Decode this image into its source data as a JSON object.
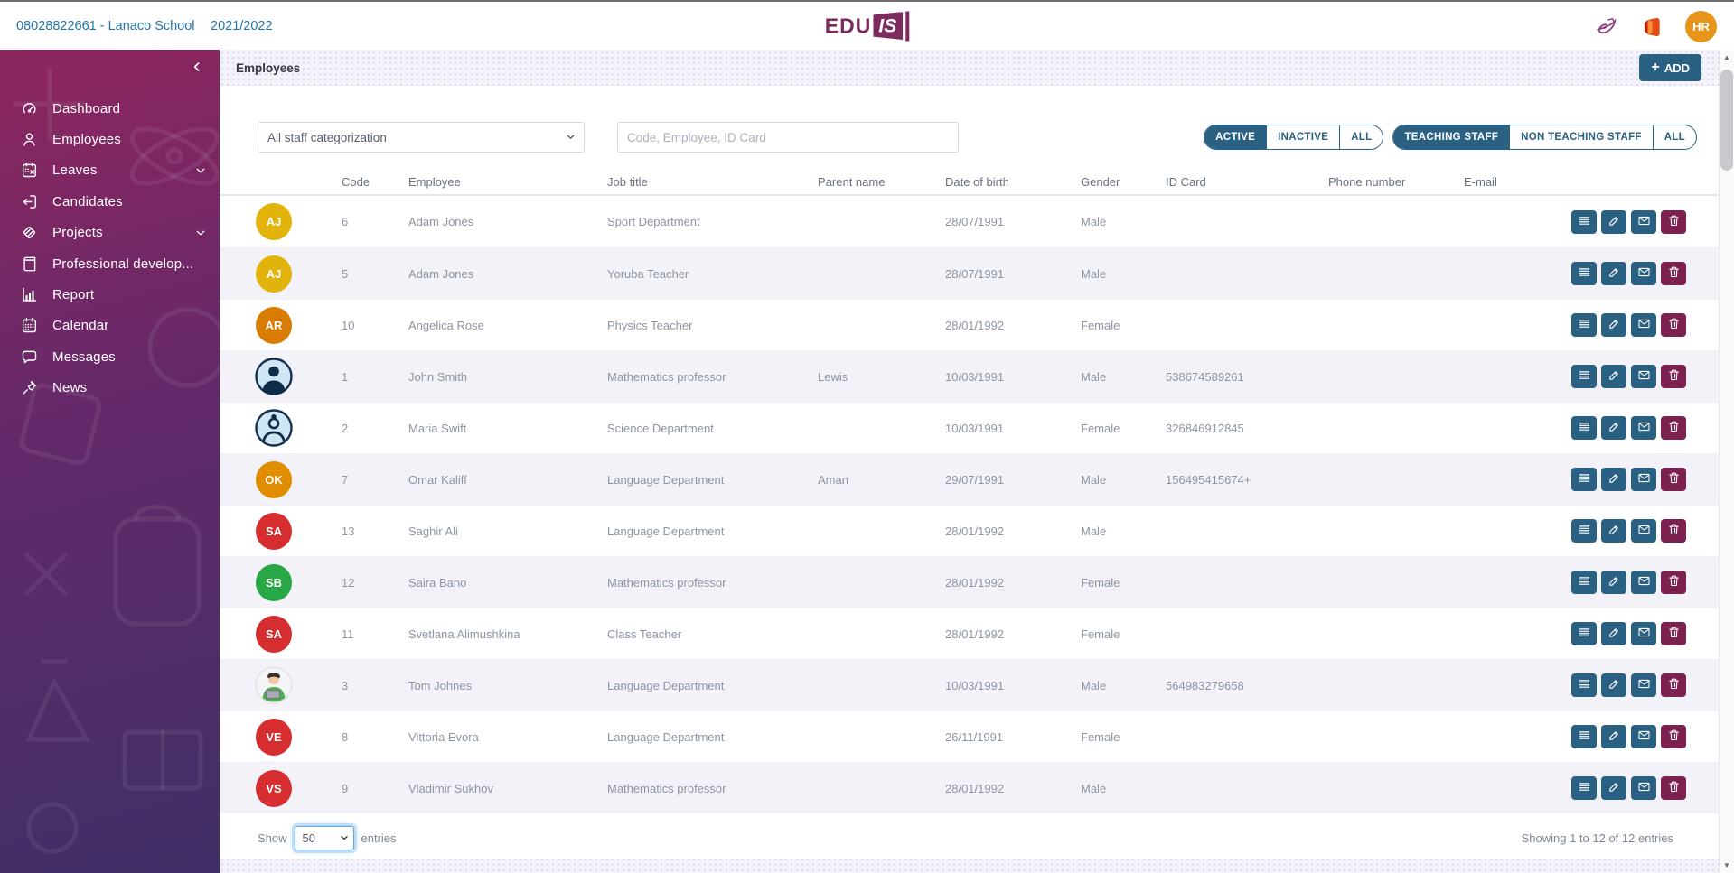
{
  "topbar": {
    "school": "08028822661 - Lanaco School",
    "school_year": "2021/2022",
    "logo": {
      "text": "EDU",
      "badge": "IS"
    },
    "avatar_initials": "HR",
    "avatar_color": "#e7941a"
  },
  "sidebar": {
    "items": [
      {
        "label": "Dashboard",
        "icon": "dashboard-icon",
        "expandable": false
      },
      {
        "label": "Employees",
        "icon": "employees-icon",
        "expandable": false
      },
      {
        "label": "Leaves",
        "icon": "leaves-icon",
        "expandable": true
      },
      {
        "label": "Candidates",
        "icon": "candidates-icon",
        "expandable": false
      },
      {
        "label": "Projects",
        "icon": "projects-icon",
        "expandable": true
      },
      {
        "label": "Professional develop...",
        "icon": "professional-development-icon",
        "expandable": false
      },
      {
        "label": "Report",
        "icon": "report-icon",
        "expandable": false
      },
      {
        "label": "Calendar",
        "icon": "calendar-icon",
        "expandable": false
      },
      {
        "label": "Messages",
        "icon": "messages-icon",
        "expandable": false
      },
      {
        "label": "News",
        "icon": "news-icon",
        "expandable": false
      }
    ]
  },
  "page": {
    "title": "Employees",
    "add_button_plus": "+",
    "add_button_label": "ADD"
  },
  "filters": {
    "category_selected": "All staff categorization",
    "search_placeholder": "Code, Employee, ID Card",
    "status_toggle": {
      "options": [
        "ACTIVE",
        "INACTIVE",
        "ALL"
      ],
      "selected": "ACTIVE"
    },
    "staff_toggle": {
      "options": [
        "TEACHING STAFF",
        "NON TEACHING STAFF",
        "ALL"
      ],
      "selected": "TEACHING STAFF"
    }
  },
  "table": {
    "columns": [
      "",
      "Code",
      "Employee",
      "Job title",
      "Parent name",
      "Date of birth",
      "Gender",
      "ID Card",
      "Phone number",
      "E-mail",
      ""
    ],
    "row_actions": [
      "details",
      "edit",
      "mail",
      "delete"
    ],
    "rows": [
      {
        "avatar": {
          "type": "initials",
          "text": "AJ",
          "color": "#e2b40b"
        },
        "code": "6",
        "employee": "Adam Jones",
        "job_title": "Sport Department",
        "parent_name": "",
        "date_of_birth": "28/07/1991",
        "gender": "Male",
        "id_card": "",
        "phone": "",
        "email": ""
      },
      {
        "avatar": {
          "type": "initials",
          "text": "AJ",
          "color": "#e2b40b"
        },
        "code": "5",
        "employee": "Adam Jones",
        "job_title": "Yoruba Teacher",
        "parent_name": "",
        "date_of_birth": "28/07/1991",
        "gender": "Male",
        "id_card": "",
        "phone": "",
        "email": ""
      },
      {
        "avatar": {
          "type": "initials",
          "text": "AR",
          "color": "#d97c06"
        },
        "code": "10",
        "employee": "Angelica Rose",
        "job_title": "Physics Teacher",
        "parent_name": "",
        "date_of_birth": "28/01/1992",
        "gender": "Female",
        "id_card": "",
        "phone": "",
        "email": ""
      },
      {
        "avatar": {
          "type": "photo-male"
        },
        "code": "1",
        "employee": "John Smith",
        "job_title": "Mathematics professor",
        "parent_name": "Lewis",
        "date_of_birth": "10/03/1991",
        "gender": "Male",
        "id_card": "538674589261",
        "phone": "",
        "email": ""
      },
      {
        "avatar": {
          "type": "photo-female"
        },
        "code": "2",
        "employee": "Maria Swift",
        "job_title": "Science Department",
        "parent_name": "",
        "date_of_birth": "10/03/1991",
        "gender": "Female",
        "id_card": "326846912845",
        "phone": "",
        "email": ""
      },
      {
        "avatar": {
          "type": "initials",
          "text": "OK",
          "color": "#e18d00"
        },
        "code": "7",
        "employee": "Omar Kaliff",
        "job_title": "Language Department",
        "parent_name": "Aman",
        "date_of_birth": "29/07/1991",
        "gender": "Male",
        "id_card": "156495415674+",
        "phone": "",
        "email": ""
      },
      {
        "avatar": {
          "type": "initials",
          "text": "SA",
          "color": "#d62d30"
        },
        "code": "13",
        "employee": "Saghir Ali",
        "job_title": "Language Department",
        "parent_name": "",
        "date_of_birth": "28/01/1992",
        "gender": "Male",
        "id_card": "",
        "phone": "",
        "email": ""
      },
      {
        "avatar": {
          "type": "initials",
          "text": "SB",
          "color": "#27a844"
        },
        "code": "12",
        "employee": "Saira Bano",
        "job_title": "Mathematics professor",
        "parent_name": "",
        "date_of_birth": "28/01/1992",
        "gender": "Female",
        "id_card": "",
        "phone": "",
        "email": ""
      },
      {
        "avatar": {
          "type": "initials",
          "text": "SA",
          "color": "#d62d30"
        },
        "code": "11",
        "employee": "Svetlana Alimushkina",
        "job_title": "Class Teacher",
        "parent_name": "",
        "date_of_birth": "28/01/1992",
        "gender": "Female",
        "id_card": "",
        "phone": "",
        "email": ""
      },
      {
        "avatar": {
          "type": "photo-laptop"
        },
        "code": "3",
        "employee": "Tom Johnes",
        "job_title": "Language Department",
        "parent_name": "",
        "date_of_birth": "10/03/1991",
        "gender": "Male",
        "id_card": "564983279658",
        "phone": "",
        "email": ""
      },
      {
        "avatar": {
          "type": "initials",
          "text": "VE",
          "color": "#d62d30"
        },
        "code": "8",
        "employee": "Vittoria Evora",
        "job_title": "Language Department",
        "parent_name": "",
        "date_of_birth": "26/11/1991",
        "gender": "Female",
        "id_card": "",
        "phone": "",
        "email": ""
      },
      {
        "avatar": {
          "type": "initials",
          "text": "VS",
          "color": "#d62d30"
        },
        "code": "9",
        "employee": "Vladimir Sukhov",
        "job_title": "Mathematics professor",
        "parent_name": "",
        "date_of_birth": "28/01/1992",
        "gender": "Male",
        "id_card": "",
        "phone": "",
        "email": ""
      }
    ]
  },
  "pagination": {
    "show_label": "Show",
    "page_size": "50",
    "entries_label": "entries",
    "summary": "Showing 1 to 12 of 12 entries"
  },
  "colors": {
    "accent": "#2a6183",
    "danger": "#7d2150",
    "link": "#2276ad",
    "logo": "#7d2a5e",
    "sidebar_top": "#8e265f",
    "sidebar_bottom": "#3f2f66",
    "row_alt": "#f2f2f8"
  }
}
